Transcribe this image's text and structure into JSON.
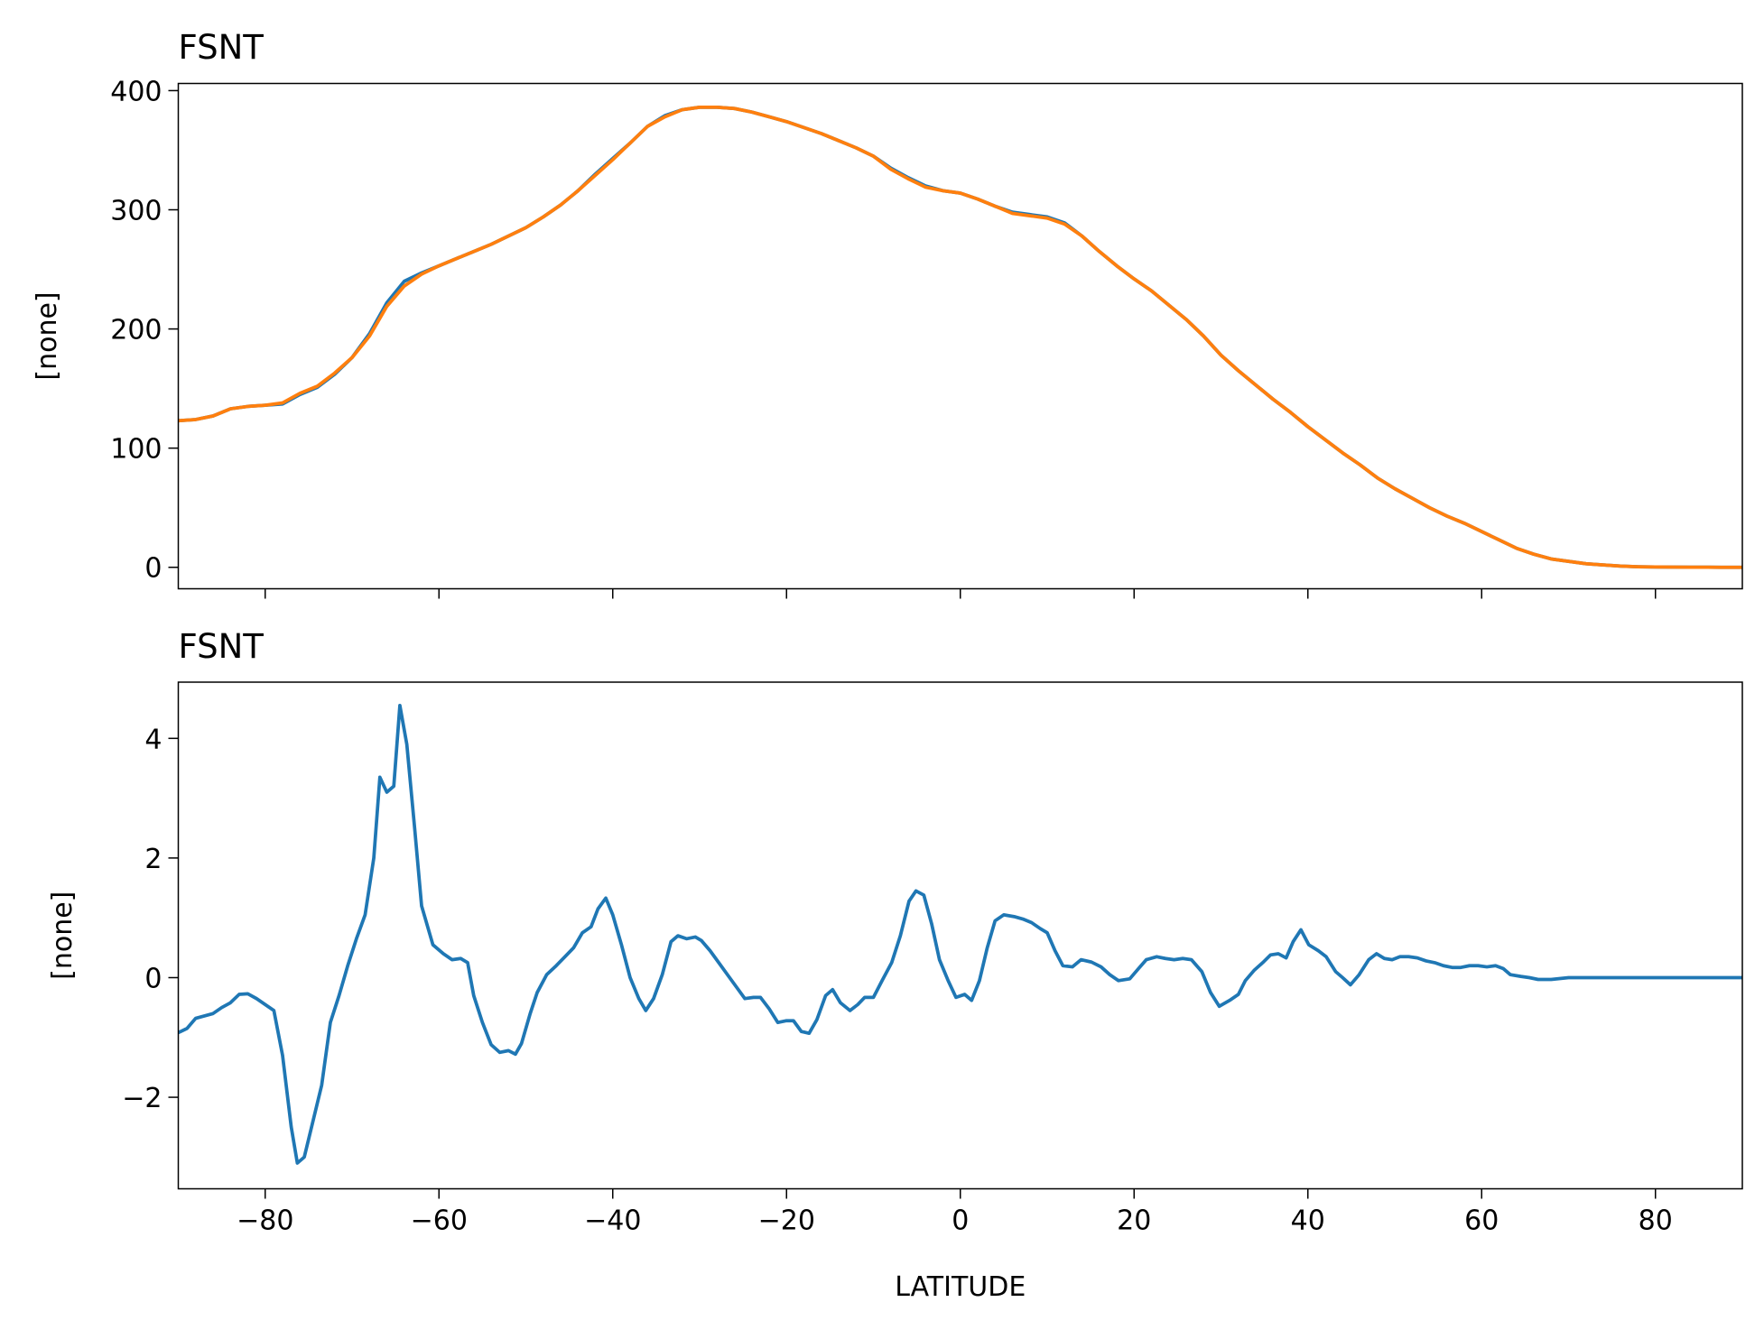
{
  "chart_data": [
    {
      "type": "line",
      "title": "FSNT",
      "ylabel": "[none]",
      "x": [
        -90,
        -88,
        -86,
        -84,
        -82,
        -80,
        -78,
        -76,
        -74,
        -72,
        -70,
        -68,
        -66,
        -64,
        -62,
        -60,
        -58,
        -56,
        -54,
        -52,
        -50,
        -48,
        -46,
        -44,
        -42,
        -40,
        -38,
        -36,
        -34,
        -32,
        -30,
        -28,
        -26,
        -24,
        -22,
        -20,
        -18,
        -16,
        -14,
        -12,
        -10,
        -8,
        -6,
        -4,
        -2,
        0,
        2,
        4,
        6,
        8,
        10,
        12,
        14,
        16,
        18,
        20,
        22,
        24,
        26,
        28,
        30,
        32,
        34,
        36,
        38,
        40,
        42,
        44,
        46,
        48,
        50,
        52,
        54,
        56,
        58,
        60,
        62,
        64,
        66,
        68,
        70,
        72,
        74,
        76,
        78,
        80,
        82,
        84,
        86,
        88,
        90
      ],
      "series": [
        {
          "color": "#1f77b4",
          "values": [
            123,
            124,
            127,
            133,
            135,
            136,
            137,
            145,
            151,
            162,
            176,
            196,
            222,
            240,
            247,
            253,
            259,
            265,
            271,
            278,
            285,
            294,
            304,
            316,
            330,
            343,
            356,
            370,
            379,
            384,
            386,
            386,
            385,
            382,
            378,
            374,
            369,
            364,
            358,
            352,
            345,
            335,
            327,
            320,
            316,
            314,
            309,
            303,
            298,
            296,
            294,
            289,
            278,
            265,
            253,
            242,
            232,
            220,
            208,
            194,
            178,
            165,
            153,
            141,
            130,
            118,
            107,
            96,
            86,
            75,
            66,
            58,
            50,
            43,
            37,
            30,
            23,
            16,
            11,
            7,
            5,
            3,
            2,
            1,
            0.5,
            0.3,
            0.2,
            0.1,
            0.1,
            0,
            0
          ]
        },
        {
          "color": "#ff7f0e",
          "values": [
            123,
            124,
            127,
            133,
            135,
            136,
            138,
            146,
            152,
            163,
            176,
            194,
            219,
            236,
            246,
            253,
            259,
            265,
            271,
            278,
            285,
            294,
            304,
            316,
            329,
            342,
            356,
            370,
            378,
            384,
            386,
            386,
            385,
            382,
            378,
            374,
            369,
            364,
            358,
            352,
            345,
            334,
            326,
            319,
            316,
            314,
            309,
            303,
            297,
            295,
            293,
            288,
            278,
            265,
            253,
            242,
            232,
            220,
            208,
            194,
            178,
            165,
            153,
            141,
            130,
            118,
            107,
            96,
            86,
            75,
            66,
            58,
            50,
            43,
            37,
            30,
            23,
            16,
            11,
            7,
            5,
            3,
            2,
            1,
            0.5,
            0.3,
            0.2,
            0.1,
            0.1,
            0,
            0
          ]
        }
      ],
      "xlim": [
        -90,
        90
      ],
      "xticks": [
        -80,
        -60,
        -40,
        -20,
        0,
        20,
        40,
        60,
        80
      ],
      "show_xtick_labels": false,
      "ylim": [
        -18,
        406
      ],
      "yticks": [
        0,
        100,
        200,
        300,
        400
      ]
    },
    {
      "type": "line",
      "title": "FSNT",
      "ylabel": "[none]",
      "xlabel": "LATITUDE",
      "x": [
        -90,
        -89,
        -88,
        -86,
        -85,
        -84,
        -83,
        -82,
        -81,
        -80,
        -79,
        -78,
        -77,
        -76.3,
        -75.5,
        -74.5,
        -73.5,
        -72.5,
        -71.5,
        -70.5,
        -69.5,
        -68.5,
        -67.5,
        -66.8,
        -66,
        -65.2,
        -64.5,
        -63.7,
        -62.8,
        -62,
        -60.7,
        -59.5,
        -58.5,
        -57.5,
        -56.7,
        -56,
        -55,
        -54,
        -53,
        -52,
        -51.2,
        -50.5,
        -49.5,
        -48.7,
        -47.6,
        -46.5,
        -45.5,
        -44.5,
        -43.5,
        -42.5,
        -41.7,
        -40.8,
        -40,
        -39,
        -38,
        -37,
        -36.2,
        -35.3,
        -34.3,
        -33.3,
        -32.5,
        -31.5,
        -30.5,
        -29.8,
        -28.8,
        -27.8,
        -26.8,
        -25.8,
        -24.8,
        -23.8,
        -23,
        -22,
        -21,
        -20,
        -19.2,
        -18.3,
        -17.4,
        -16.5,
        -15.5,
        -14.7,
        -13.8,
        -12.7,
        -11.8,
        -11,
        -10,
        -9,
        -7.9,
        -6.9,
        -5.9,
        -5.1,
        -4.2,
        -3.3,
        -2.4,
        -1.4,
        -0.5,
        0.5,
        1.3,
        2.2,
        3.1,
        4,
        5,
        6.2,
        7.2,
        8.2,
        9.2,
        10,
        10.9,
        11.8,
        12.9,
        13.9,
        15.1,
        16.2,
        17.2,
        18.2,
        19.5,
        20.5,
        21.4,
        22.6,
        23.6,
        24.6,
        25.6,
        26.6,
        27.8,
        28.8,
        29.8,
        31,
        32,
        32.8,
        33.8,
        34.8,
        35.7,
        36.6,
        37.5,
        38.3,
        39.2,
        40.1,
        41.2,
        42.1,
        43.2,
        44,
        44.9,
        45.9,
        47,
        47.9,
        48.8,
        49.7,
        50.6,
        51.6,
        52.6,
        53.6,
        54.6,
        55.6,
        56.6,
        57.6,
        58.6,
        59.6,
        60.6,
        61.6,
        62.5,
        63.3,
        64.5,
        65.5,
        66.5,
        68,
        70,
        75,
        80,
        85,
        90
      ],
      "series": [
        {
          "color": "#1f77b4",
          "values": [
            -0.92,
            -0.85,
            -0.68,
            -0.6,
            -0.5,
            -0.42,
            -0.28,
            -0.27,
            -0.35,
            -0.45,
            -0.55,
            -1.3,
            -2.5,
            -3.1,
            -3.0,
            -2.4,
            -1.8,
            -0.75,
            -0.3,
            0.2,
            0.65,
            1.05,
            2.0,
            3.35,
            3.1,
            3.2,
            4.55,
            3.9,
            2.5,
            1.2,
            0.55,
            0.4,
            0.3,
            0.32,
            0.25,
            -0.3,
            -0.75,
            -1.12,
            -1.25,
            -1.22,
            -1.28,
            -1.1,
            -0.6,
            -0.25,
            0.05,
            0.2,
            0.35,
            0.5,
            0.75,
            0.85,
            1.15,
            1.33,
            1.05,
            0.55,
            0.0,
            -0.35,
            -0.55,
            -0.35,
            0.05,
            0.6,
            0.7,
            0.65,
            0.68,
            0.62,
            0.45,
            0.25,
            0.05,
            -0.15,
            -0.35,
            -0.33,
            -0.33,
            -0.52,
            -0.75,
            -0.72,
            -0.72,
            -0.9,
            -0.93,
            -0.7,
            -0.3,
            -0.2,
            -0.42,
            -0.55,
            -0.45,
            -0.33,
            -0.33,
            -0.05,
            0.25,
            0.7,
            1.28,
            1.45,
            1.38,
            0.9,
            0.3,
            -0.05,
            -0.33,
            -0.28,
            -0.38,
            -0.05,
            0.5,
            0.95,
            1.05,
            1.02,
            0.98,
            0.92,
            0.82,
            0.75,
            0.45,
            0.2,
            0.18,
            0.3,
            0.26,
            0.18,
            0.05,
            -0.05,
            -0.02,
            0.15,
            0.3,
            0.35,
            0.32,
            0.3,
            0.32,
            0.3,
            0.1,
            -0.25,
            -0.48,
            -0.38,
            -0.28,
            -0.05,
            0.12,
            0.25,
            0.38,
            0.4,
            0.33,
            0.6,
            0.8,
            0.55,
            0.45,
            0.35,
            0.1,
            0.0,
            -0.12,
            0.05,
            0.3,
            0.4,
            0.32,
            0.3,
            0.35,
            0.35,
            0.33,
            0.28,
            0.25,
            0.2,
            0.17,
            0.17,
            0.2,
            0.2,
            0.18,
            0.2,
            0.15,
            0.05,
            0.02,
            0.0,
            -0.03,
            -0.03,
            0.0,
            0.0,
            0.0,
            0.0,
            0.0
          ]
        }
      ],
      "xlim": [
        -90,
        90
      ],
      "xticks": [
        {
          "value": -80,
          "label": "−80"
        },
        {
          "value": -60,
          "label": "−60"
        },
        {
          "value": -40,
          "label": "−40"
        },
        {
          "value": -20,
          "label": "−20"
        },
        0,
        20,
        40,
        60,
        80
      ],
      "ylim": [
        -3.53,
        4.94
      ],
      "yticks": [
        {
          "value": -2,
          "label": "−2"
        },
        0,
        2,
        4
      ]
    }
  ]
}
